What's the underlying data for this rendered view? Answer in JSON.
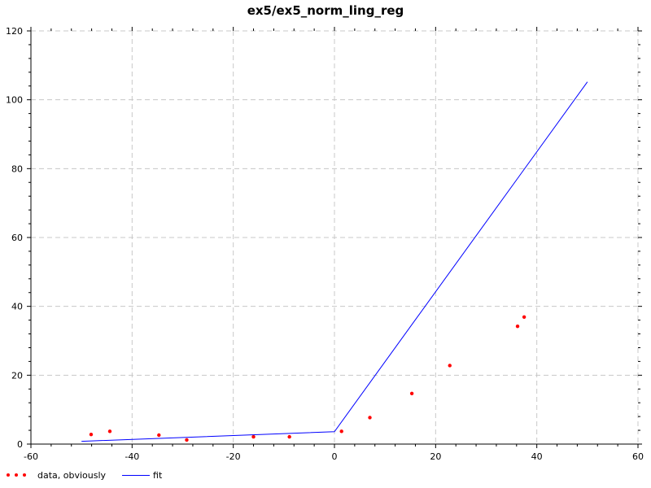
{
  "chart_data": {
    "type": "scatter",
    "title": "ex5/ex5_norm_ling_reg",
    "xlabel": "",
    "ylabel": "",
    "xlim": [
      -60,
      60
    ],
    "ylim": [
      0,
      120
    ],
    "x_ticks": [
      "-60",
      "-40",
      "-20",
      "0",
      "20",
      "40",
      "60"
    ],
    "y_ticks": [
      "0",
      "20",
      "40",
      "60",
      "80",
      "100",
      "120"
    ],
    "grid": true,
    "legend_position": "bottom-left",
    "series": [
      {
        "name": "data, obviously",
        "kind": "points",
        "color": "#ff0000",
        "x": [
          -48.1,
          -44.4,
          -34.7,
          -29.2,
          -16.0,
          -8.9,
          1.4,
          7.0,
          15.3,
          22.8,
          36.2,
          37.5
        ],
        "y": [
          2.8,
          3.7,
          2.6,
          1.2,
          2.1,
          2.1,
          3.7,
          7.7,
          14.7,
          22.8,
          34.2,
          36.9
        ]
      },
      {
        "name": "fit",
        "kind": "line",
        "color": "#0000ff",
        "x": [
          -50,
          0,
          50
        ],
        "y": [
          0.8,
          3.6,
          105.2
        ]
      }
    ]
  }
}
